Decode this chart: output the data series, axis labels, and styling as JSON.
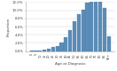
{
  "proportions": [
    0.001,
    0.001,
    0.002,
    0.004,
    0.006,
    0.009,
    0.013,
    0.021,
    0.034,
    0.052,
    0.073,
    0.09,
    0.102,
    0.118,
    0.13,
    0.13,
    0.12,
    0.105,
    0.036
  ],
  "age_labels": [
    "0",
    "5",
    "10",
    "15",
    "20",
    "25",
    "30",
    "35",
    "40",
    "45",
    "50",
    "55",
    "60",
    "65",
    "70",
    "75",
    "80",
    "85",
    "90+"
  ],
  "bar_color": "#5b8db8",
  "bar_edge_color": "#4a7aa5",
  "background_color": "#ffffff",
  "ylabel": "Proportion",
  "xlabel": "Age at Diagnosis",
  "ylim": [
    0,
    0.12
  ],
  "yticks": [
    0.0,
    0.02,
    0.04,
    0.06,
    0.08,
    0.1,
    0.12
  ],
  "grid_color": "#cccccc",
  "grid_linewidth": 0.3
}
